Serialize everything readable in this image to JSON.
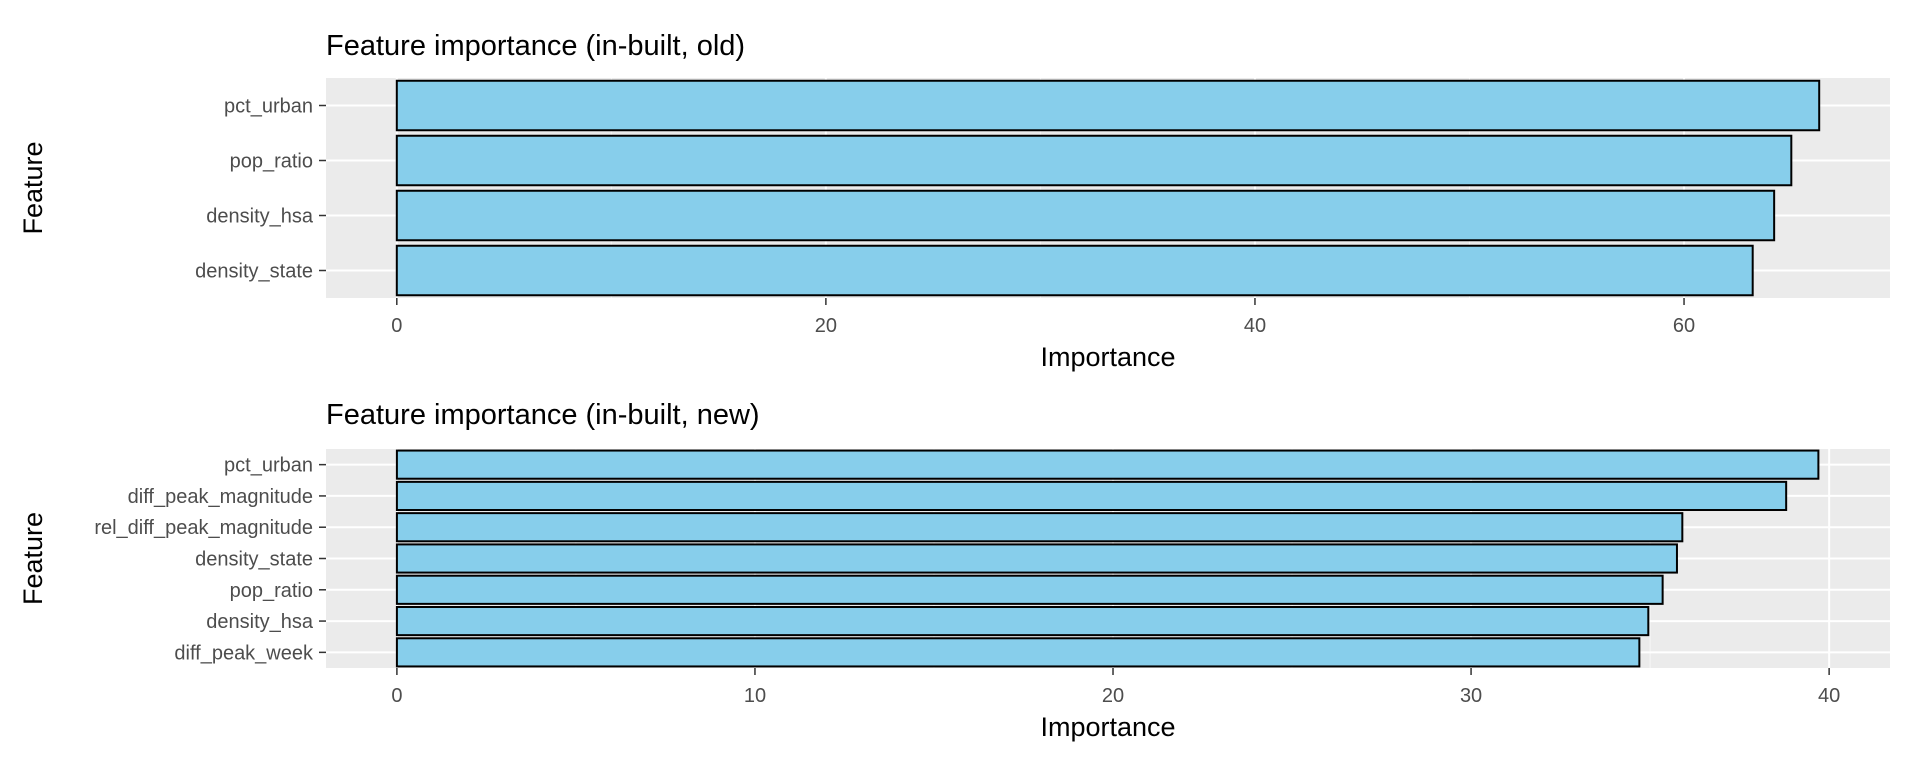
{
  "chart_data": [
    {
      "type": "bar",
      "orientation": "horizontal",
      "title": "Feature importance (in-built, old)",
      "xlabel": "Importance",
      "ylabel": "Feature",
      "categories": [
        "pct_urban",
        "pop_ratio",
        "density_hsa",
        "density_state"
      ],
      "values": [
        66.3,
        65.0,
        64.2,
        63.2
      ],
      "xlim": [
        -3.3,
        69.6
      ],
      "xticks": [
        0,
        20,
        40,
        60
      ],
      "grid": true,
      "bar_color": "#87ceeb",
      "bar_edge_color": "#000000"
    },
    {
      "type": "bar",
      "orientation": "horizontal",
      "title": "Feature importance (in-built, new)",
      "xlabel": "Importance",
      "ylabel": "Feature",
      "categories": [
        "pct_urban",
        "diff_peak_magnitude",
        "rel_diff_peak_magnitude",
        "density_state",
        "pop_ratio",
        "density_hsa",
        "diff_peak_week"
      ],
      "values": [
        39.7,
        38.8,
        35.9,
        35.75,
        35.35,
        34.95,
        34.7
      ],
      "xlim": [
        -1.98,
        41.7
      ],
      "xticks": [
        0,
        10,
        20,
        30,
        40
      ],
      "grid": true,
      "bar_color": "#87ceeb",
      "bar_edge_color": "#000000"
    }
  ]
}
